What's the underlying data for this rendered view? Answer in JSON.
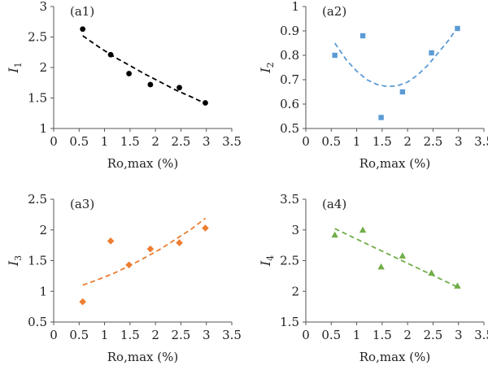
{
  "chart_data": [
    {
      "type": "scatter",
      "panel_label": "(a1)",
      "ylabel": "I",
      "ylabel_sub": "1",
      "xlabel": "Ro,max (%)",
      "xlim": [
        0,
        3.5
      ],
      "ylim": [
        1,
        3
      ],
      "xticks": [
        "0",
        "0.5",
        "1",
        "1.5",
        "2",
        "2.5",
        "3",
        "3.5"
      ],
      "yticks": [
        "1",
        "1.5",
        "2",
        "2.5",
        "3"
      ],
      "color": "#000000",
      "marker": "circle",
      "trend": "dashed",
      "x": [
        0.57,
        1.12,
        1.48,
        1.9,
        2.47,
        2.98
      ],
      "y": [
        2.63,
        2.21,
        1.9,
        1.72,
        1.67,
        1.42
      ],
      "trend_x": [
        0.57,
        0.9,
        1.2,
        1.5,
        1.8,
        2.1,
        2.4,
        2.7,
        2.98
      ],
      "trend_y": [
        2.52,
        2.33,
        2.17,
        2.03,
        1.89,
        1.76,
        1.63,
        1.52,
        1.41
      ]
    },
    {
      "type": "scatter",
      "panel_label": "(a2)",
      "ylabel": "I",
      "ylabel_sub": "2",
      "xlabel": "Ro,max (%)",
      "xlim": [
        0,
        3.5
      ],
      "ylim": [
        0.5,
        1
      ],
      "xticks": [
        "0",
        "0.5",
        "1",
        "1.5",
        "2",
        "2.5",
        "3",
        "3.5"
      ],
      "yticks": [
        "0.5",
        "0.6",
        "0.7",
        "0.8",
        "0.9",
        "1"
      ],
      "color": "#5b9bd5",
      "marker": "square",
      "trend": "dashed",
      "x": [
        0.57,
        1.12,
        1.48,
        1.9,
        2.47,
        2.98
      ],
      "y": [
        0.8,
        0.88,
        0.545,
        0.65,
        0.81,
        0.91
      ],
      "trend_x": [
        0.57,
        0.8,
        1.0,
        1.2,
        1.4,
        1.6,
        1.8,
        2.0,
        2.2,
        2.4,
        2.6,
        2.8,
        2.98
      ],
      "trend_y": [
        0.85,
        0.78,
        0.735,
        0.7,
        0.68,
        0.672,
        0.675,
        0.69,
        0.72,
        0.76,
        0.81,
        0.86,
        0.915
      ]
    },
    {
      "type": "scatter",
      "panel_label": "(a3)",
      "ylabel": "I",
      "ylabel_sub": "3",
      "xlabel": "Ro,max (%)",
      "xlim": [
        0,
        3.5
      ],
      "ylim": [
        0.5,
        2.5
      ],
      "xticks": [
        "0",
        "0.5",
        "1",
        "1.5",
        "2",
        "2.5",
        "3",
        "3.5"
      ],
      "yticks": [
        "0.5",
        "1",
        "1.5",
        "2",
        "2.5"
      ],
      "color": "#ed7d31",
      "marker": "diamond",
      "trend": "dashed",
      "x": [
        0.57,
        1.12,
        1.48,
        1.9,
        2.47,
        2.98
      ],
      "y": [
        0.83,
        1.82,
        1.43,
        1.69,
        1.79,
        2.03
      ],
      "trend_x": [
        0.57,
        0.9,
        1.2,
        1.5,
        1.8,
        2.1,
        2.4,
        2.7,
        2.98
      ],
      "trend_y": [
        1.1,
        1.2,
        1.3,
        1.42,
        1.55,
        1.69,
        1.85,
        2.01,
        2.19
      ]
    },
    {
      "type": "scatter",
      "panel_label": "(a4)",
      "ylabel": "I",
      "ylabel_sub": "4",
      "xlabel": "Ro,max (%)",
      "xlim": [
        0,
        3.5
      ],
      "ylim": [
        1.5,
        3.5
      ],
      "xticks": [
        "0",
        "0.5",
        "1",
        "1.5",
        "2",
        "2.5",
        "3",
        "3.5"
      ],
      "yticks": [
        "1.5",
        "2",
        "2.5",
        "3",
        "3.5"
      ],
      "color": "#70ad47",
      "marker": "triangle",
      "trend": "dashed",
      "x": [
        0.57,
        1.12,
        1.48,
        1.9,
        2.47,
        2.98
      ],
      "y": [
        2.92,
        3.0,
        2.4,
        2.58,
        2.3,
        2.09
      ],
      "trend_x": [
        0.57,
        2.98
      ],
      "trend_y": [
        3.02,
        2.07
      ]
    }
  ]
}
